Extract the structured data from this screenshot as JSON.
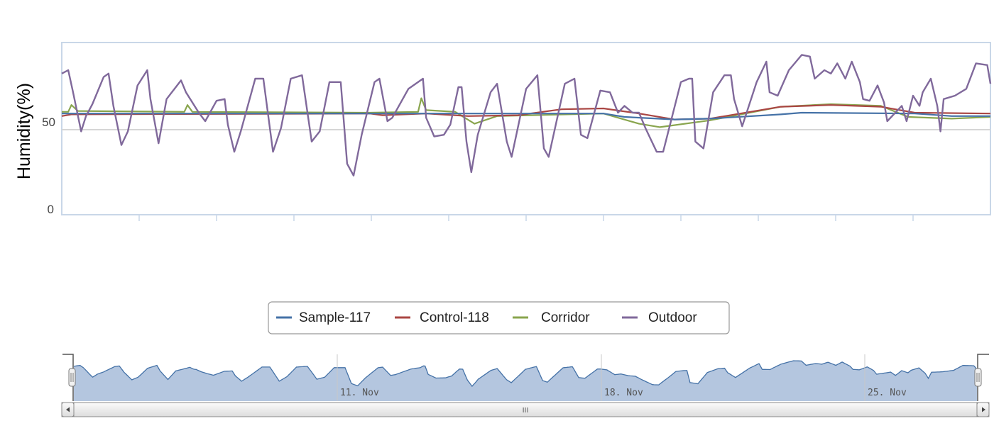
{
  "chart_data": {
    "type": "line",
    "title": "",
    "xlabel": "",
    "ylabel": "Humidity(%)",
    "ylim": [
      0,
      100
    ],
    "xlim": [
      "Nov 4 00:00",
      "Nov 28 00:00"
    ],
    "y_ticks": [
      "0",
      "50"
    ],
    "grid": "horizontal line at 50",
    "legend": {
      "placement": "bottom-center"
    },
    "series": [
      {
        "name": "Sample-117",
        "color": "#4572a7",
        "points": [
          [
            "Nov 4 00:00",
            59.5
          ],
          [
            "Nov 18 00:00",
            59.5
          ],
          [
            "Nov 18 13:00",
            57.5
          ],
          [
            "Nov 19 20:00",
            56
          ],
          [
            "Nov 20 18:00",
            56.5
          ],
          [
            "Nov 22 14:00",
            59
          ],
          [
            "Nov 23 03:00",
            60
          ],
          [
            "Nov 26 01:00",
            59.5
          ],
          [
            "Nov 27 00:00",
            58
          ],
          [
            "Nov 28 00:00",
            58
          ]
        ]
      },
      {
        "name": "Control-118",
        "color": "#aa4643",
        "points": [
          [
            "Nov 4 00:00",
            58
          ],
          [
            "Nov 4 06:00",
            59
          ],
          [
            "Nov 11 23:00",
            59.5
          ],
          [
            "Nov 12 07:00",
            58.5
          ],
          [
            "Nov 13 10:00",
            59.5
          ],
          [
            "Nov 14 12:00",
            58
          ],
          [
            "Nov 15 19:00",
            58.5
          ],
          [
            "Nov 16 22:00",
            62
          ],
          [
            "Nov 18 00:00",
            62.5
          ],
          [
            "Nov 18 22:00",
            59.5
          ],
          [
            "Nov 19 20:00",
            56
          ],
          [
            "Nov 20 18:00",
            56.5
          ],
          [
            "Nov 22 14:00",
            63.5
          ],
          [
            "Nov 23 21:00",
            64.5
          ],
          [
            "Nov 25 04:00",
            63.5
          ],
          [
            "Nov 26 01:00",
            60
          ],
          [
            "Nov 28 00:00",
            59.5
          ]
        ]
      },
      {
        "name": "Corridor",
        "color": "#89a54e",
        "points": [
          [
            "Nov 4 00:00",
            60.5
          ],
          [
            "Nov 4 04:00",
            60.5
          ],
          [
            "Nov 4 06:00",
            64.5
          ],
          [
            "Nov 4 10:00",
            61
          ],
          [
            "Nov 7 04:00",
            60.5
          ],
          [
            "Nov 7 06:00",
            64.5
          ],
          [
            "Nov 7 09:00",
            60.5
          ],
          [
            "Nov 11 23:00",
            60
          ],
          [
            "Nov 13 05:00",
            60.5
          ],
          [
            "Nov 13 07:00",
            68.5
          ],
          [
            "Nov 13 10:00",
            61.5
          ],
          [
            "Nov 14 04:00",
            60.5
          ],
          [
            "Nov 14 16:00",
            53.5
          ],
          [
            "Nov 15 06:00",
            58
          ],
          [
            "Nov 18 00:00",
            59.5
          ],
          [
            "Nov 18 22:00",
            53.5
          ],
          [
            "Nov 19 11:00",
            51.5
          ],
          [
            "Nov 20 18:00",
            55.5
          ],
          [
            "Nov 22 14:00",
            63.5
          ],
          [
            "Nov 23 21:00",
            65
          ],
          [
            "Nov 25 04:00",
            64
          ],
          [
            "Nov 25 21:00",
            57.5
          ],
          [
            "Nov 27 00:00",
            56.5
          ],
          [
            "Nov 28 00:00",
            57.5
          ]
        ]
      },
      {
        "name": "Outdoor",
        "color": "#80699b",
        "points": [
          [
            "Nov 4 00:00",
            83
          ],
          [
            "Nov 4 04:00",
            85
          ],
          [
            "Nov 4 07:00",
            72
          ],
          [
            "Nov 4 12:00",
            49
          ],
          [
            "Nov 4 15:00",
            58
          ],
          [
            "Nov 4 19:00",
            65
          ],
          [
            "Nov 5 02:00",
            81
          ],
          [
            "Nov 5 05:00",
            83
          ],
          [
            "Nov 5 08:00",
            64
          ],
          [
            "Nov 5 13:00",
            41
          ],
          [
            "Nov 5 17:00",
            49
          ],
          [
            "Nov 5 23:00",
            76
          ],
          [
            "Nov 6 05:00",
            85
          ],
          [
            "Nov 6 07:00",
            68
          ],
          [
            "Nov 6 12:00",
            42
          ],
          [
            "Nov 6 17:00",
            68
          ],
          [
            "Nov 7 02:00",
            79
          ],
          [
            "Nov 7 05:00",
            72
          ],
          [
            "Nov 7 13:00",
            60
          ],
          [
            "Nov 7 17:00",
            55
          ],
          [
            "Nov 8 00:00",
            67
          ],
          [
            "Nov 8 05:00",
            68
          ],
          [
            "Nov 8 07:00",
            53
          ],
          [
            "Nov 8 11:00",
            37
          ],
          [
            "Nov 8 15:00",
            49
          ],
          [
            "Nov 9 00:00",
            80
          ],
          [
            "Nov 9 05:00",
            80
          ],
          [
            "Nov 9 11:00",
            37
          ],
          [
            "Nov 9 16:00",
            51
          ],
          [
            "Nov 9 22:00",
            80
          ],
          [
            "Nov 10 05:00",
            82
          ],
          [
            "Nov 10 11:00",
            43
          ],
          [
            "Nov 10 16:00",
            49
          ],
          [
            "Nov 10 22:00",
            78
          ],
          [
            "Nov 11 05:00",
            78
          ],
          [
            "Nov 11 09:00",
            30
          ],
          [
            "Nov 11 13:00",
            23
          ],
          [
            "Nov 11 18:00",
            47
          ],
          [
            "Nov 12 02:00",
            78
          ],
          [
            "Nov 12 05:00",
            80
          ],
          [
            "Nov 12 10:00",
            55
          ],
          [
            "Nov 12 13:00",
            57
          ],
          [
            "Nov 12 23:00",
            74
          ],
          [
            "Nov 13 08:00",
            80
          ],
          [
            "Nov 13 10:00",
            57
          ],
          [
            "Nov 13 15:00",
            46
          ],
          [
            "Nov 13 21:00",
            47
          ],
          [
            "Nov 14 01:00",
            53
          ],
          [
            "Nov 14 06:00",
            75
          ],
          [
            "Nov 14 08:00",
            75
          ],
          [
            "Nov 14 11:00",
            43
          ],
          [
            "Nov 14 14:00",
            25
          ],
          [
            "Nov 14 18:00",
            47
          ],
          [
            "Nov 15 02:00",
            72
          ],
          [
            "Nov 15 06:00",
            77
          ],
          [
            "Nov 15 12:00",
            43
          ],
          [
            "Nov 15 15:00",
            34
          ],
          [
            "Nov 16 00:00",
            74
          ],
          [
            "Nov 16 07:00",
            82
          ],
          [
            "Nov 16 11:00",
            39
          ],
          [
            "Nov 16 14:00",
            34
          ],
          [
            "Nov 17 00:00",
            77
          ],
          [
            "Nov 17 06:00",
            80
          ],
          [
            "Nov 17 10:00",
            47
          ],
          [
            "Nov 17 14:00",
            45
          ],
          [
            "Nov 17 22:00",
            73
          ],
          [
            "Nov 18 04:00",
            72
          ],
          [
            "Nov 18 09:00",
            60
          ],
          [
            "Nov 18 13:00",
            64
          ],
          [
            "Nov 18 18:00",
            60
          ],
          [
            "Nov 18 22:00",
            60
          ],
          [
            "Nov 19 02:00",
            51
          ],
          [
            "Nov 19 09:00",
            37
          ],
          [
            "Nov 19 13:00",
            37
          ],
          [
            "Nov 20 00:00",
            78
          ],
          [
            "Nov 20 05:00",
            80
          ],
          [
            "Nov 20 07:00",
            80
          ],
          [
            "Nov 20 09:00",
            43
          ],
          [
            "Nov 20 14:00",
            39
          ],
          [
            "Nov 20 20:00",
            72
          ],
          [
            "Nov 21 03:00",
            82
          ],
          [
            "Nov 21 07:00",
            82
          ],
          [
            "Nov 21 09:00",
            68
          ],
          [
            "Nov 21 14:00",
            52
          ],
          [
            "Nov 21 23:00",
            78
          ],
          [
            "Nov 22 05:00",
            90
          ],
          [
            "Nov 22 07:00",
            72
          ],
          [
            "Nov 22 12:00",
            70
          ],
          [
            "Nov 22 19:00",
            85
          ],
          [
            "Nov 23 03:00",
            94
          ],
          [
            "Nov 23 08:00",
            93
          ],
          [
            "Nov 23 11:00",
            80
          ],
          [
            "Nov 23 17:00",
            85
          ],
          [
            "Nov 23 21:00",
            83
          ],
          [
            "Nov 24 01:00",
            89
          ],
          [
            "Nov 24 06:00",
            80
          ],
          [
            "Nov 24 10:00",
            90
          ],
          [
            "Nov 24 15:00",
            78
          ],
          [
            "Nov 24 17:00",
            68
          ],
          [
            "Nov 24 21:00",
            67
          ],
          [
            "Nov 25 02:00",
            76
          ],
          [
            "Nov 25 06:00",
            66
          ],
          [
            "Nov 25 08:00",
            55
          ],
          [
            "Nov 25 13:00",
            60
          ],
          [
            "Nov 25 17:00",
            64
          ],
          [
            "Nov 25 20:00",
            55
          ],
          [
            "Nov 26 00:00",
            70
          ],
          [
            "Nov 26 04:00",
            64
          ],
          [
            "Nov 26 06:00",
            72
          ],
          [
            "Nov 26 11:00",
            80
          ],
          [
            "Nov 26 15:00",
            64
          ],
          [
            "Nov 26 17:00",
            49
          ],
          [
            "Nov 26 19:00",
            68
          ],
          [
            "Nov 27 02:00",
            70
          ],
          [
            "Nov 27 09:00",
            74
          ],
          [
            "Nov 27 15:00",
            89
          ],
          [
            "Nov 27 22:00",
            88
          ],
          [
            "Nov 28 00:00",
            77
          ]
        ]
      }
    ],
    "navigator": {
      "x_ticks": [
        "11. Nov",
        "18. Nov",
        "25. Nov"
      ],
      "scrollbar_grip": "III"
    }
  }
}
